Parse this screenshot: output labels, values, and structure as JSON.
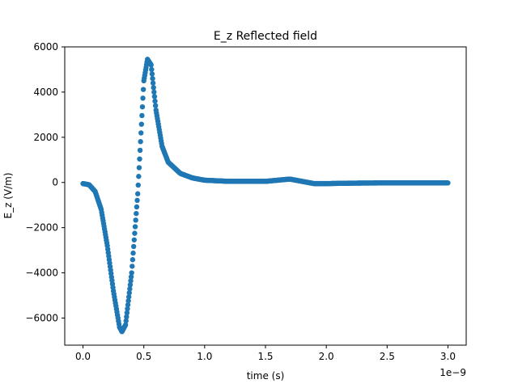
{
  "chart_data": {
    "type": "scatter",
    "title": "E_z Reflected field",
    "xlabel": "time (s)",
    "ylabel": "E_z (V/m)",
    "x_offset_text": "1e−9",
    "xlim": [
      -1.5e-10,
      3.15e-09
    ],
    "ylim": [
      -7200,
      6000
    ],
    "x_ticks": [
      0.0,
      5e-10,
      1e-09,
      1.5e-09,
      2e-09,
      2.5e-09,
      3e-09
    ],
    "x_tick_labels": [
      "0.0",
      "0.5",
      "1.0",
      "1.5",
      "2.0",
      "2.5",
      "3.0"
    ],
    "y_ticks": [
      -6000,
      -4000,
      -2000,
      0,
      2000,
      4000,
      6000
    ],
    "y_tick_labels": [
      "−6000",
      "−4000",
      "−2000",
      "0",
      "2000",
      "4000",
      "6000"
    ],
    "grid": false,
    "series": [
      {
        "color": "#1f77b4",
        "marker": "circle",
        "x": [
          0.0,
          5e-11,
          1e-10,
          1.5e-10,
          2e-10,
          2.5e-10,
          3e-10,
          3.2e-10,
          3.5e-10,
          4e-10,
          4.5e-10,
          5e-10,
          5.3e-10,
          5.6e-10,
          6e-10,
          6.5e-10,
          7e-10,
          8e-10,
          9e-10,
          1e-09,
          1.2e-09,
          1.4e-09,
          1.5e-09,
          1.6e-09,
          1.7e-09,
          1.8e-09,
          1.9e-09,
          2e-09,
          2.2e-09,
          2.5e-09,
          2.8e-09,
          3e-09
        ],
        "y": [
          -50,
          -100,
          -400,
          -1200,
          -2800,
          -4800,
          -6400,
          -6600,
          -6300,
          -4000,
          -500,
          4500,
          5450,
          5200,
          3200,
          1600,
          900,
          400,
          200,
          100,
          50,
          50,
          50,
          100,
          150,
          50,
          -50,
          -50,
          -30,
          -20,
          -20,
          -20
        ]
      }
    ]
  }
}
